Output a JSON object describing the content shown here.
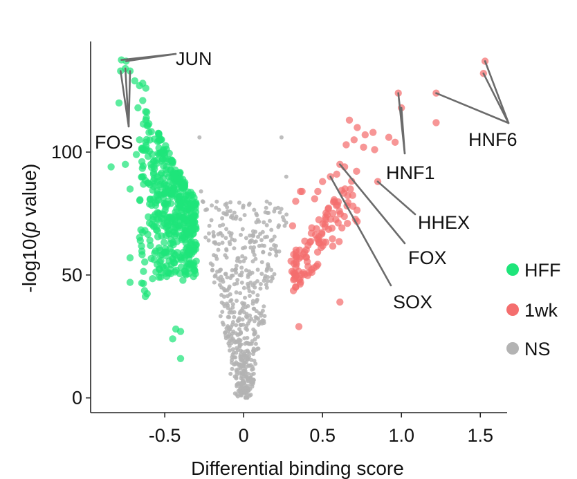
{
  "chart_data": {
    "type": "scatter",
    "xlabel": "Differential binding score",
    "ylabel_prefix": "-log10(",
    "ylabel_italic": "p",
    "ylabel_suffix": " value)",
    "xlim": [
      -0.97,
      1.67
    ],
    "ylim": [
      -6,
      145
    ],
    "x_ticks": [
      -0.5,
      0,
      0.5,
      1.0,
      1.5
    ],
    "x_tick_labels": [
      "-0.5",
      "0",
      "0.5",
      "1.0",
      "1.5"
    ],
    "y_ticks": [
      0,
      50,
      100
    ],
    "y_tick_labels": [
      "0",
      "50",
      "100"
    ],
    "grid": false,
    "legend_placement": "right",
    "series": [
      {
        "name": "HFF",
        "color": "#1ee57a",
        "points": [
          [
            -0.775,
            137.5
          ],
          [
            -0.745,
            137
          ],
          [
            -0.78,
            133
          ],
          [
            -0.75,
            134
          ],
          [
            -0.72,
            133
          ],
          [
            -0.79,
            120
          ],
          [
            -0.84,
            94
          ],
          [
            -0.75,
            95
          ],
          [
            -0.72,
            85
          ],
          [
            -0.72,
            57
          ],
          [
            -0.72,
            47
          ],
          [
            -0.43,
            28
          ],
          [
            -0.45,
            24
          ],
          [
            -0.4,
            27
          ],
          [
            -0.4,
            16
          ],
          [
            -0.69,
            129
          ],
          [
            -0.66,
            127
          ],
          [
            -0.64,
            128
          ],
          [
            -0.62,
            126
          ],
          [
            -0.64,
            121
          ],
          [
            -0.67,
            118
          ],
          [
            -0.62,
            113
          ],
          [
            -0.66,
            105
          ],
          [
            -0.6,
            108
          ],
          [
            -0.68,
            99
          ]
        ],
        "clusters": [
          {
            "x_min": -0.66,
            "x_max": -0.3,
            "y_min": 40,
            "y_max": 125,
            "count": 480,
            "seed": 11,
            "shape": "hff"
          }
        ]
      },
      {
        "name": "1wk",
        "color": "#f46e6e",
        "points": [
          [
            1.53,
            137
          ],
          [
            1.52,
            132
          ],
          [
            0.98,
            124
          ],
          [
            1.0,
            118
          ],
          [
            1.22,
            124
          ],
          [
            1.22,
            112
          ],
          [
            0.85,
            88
          ],
          [
            0.72,
            110
          ],
          [
            0.67,
            113
          ],
          [
            0.7,
            105
          ],
          [
            0.65,
            103
          ],
          [
            0.77,
            107
          ],
          [
            0.82,
            108
          ],
          [
            0.83,
            101
          ],
          [
            0.76,
            102
          ],
          [
            0.92,
            106
          ],
          [
            0.96,
            104
          ],
          [
            0.61,
            95
          ],
          [
            0.64,
            94
          ],
          [
            0.59,
            91
          ],
          [
            0.55,
            90
          ],
          [
            0.5,
            88
          ],
          [
            0.47,
            84
          ],
          [
            0.45,
            81
          ],
          [
            0.37,
            84
          ],
          [
            0.36,
            84
          ],
          [
            0.33,
            80
          ],
          [
            0.31,
            70
          ],
          [
            0.61,
            39
          ],
          [
            0.35,
            29
          ],
          [
            0.33,
            45
          ]
        ],
        "clusters": [
          {
            "x_min": 0.3,
            "x_max": 0.72,
            "y_min": 42,
            "y_max": 92,
            "count": 110,
            "seed": 23,
            "shape": "wk"
          }
        ]
      },
      {
        "name": "NS",
        "color": "#b3b3b3",
        "points": [
          [
            -0.28,
            106
          ],
          [
            0.24,
            106
          ],
          [
            0.2,
            77
          ],
          [
            0.27,
            90
          ],
          [
            0.26,
            70
          ],
          [
            -0.27,
            84
          ],
          [
            -0.26,
            80
          ]
        ],
        "clusters": [
          {
            "x_min": -0.32,
            "x_max": 0.33,
            "y_min": 0,
            "y_max": 80,
            "count": 560,
            "seed": 37,
            "shape": "v"
          }
        ]
      }
    ],
    "annotations": [
      {
        "label": "JUN",
        "targets": [
          [
            -0.775,
            137.5
          ],
          [
            -0.745,
            137
          ]
        ],
        "anchor": "jun"
      },
      {
        "label": "FOS",
        "targets": [
          [
            -0.78,
            133
          ],
          [
            -0.75,
            134
          ],
          [
            -0.72,
            133
          ]
        ],
        "anchor": "fos"
      },
      {
        "label": "HNF6",
        "targets": [
          [
            1.53,
            137
          ],
          [
            1.52,
            132
          ],
          [
            1.22,
            124
          ]
        ],
        "anchor": "hnf6"
      },
      {
        "label": "HNF1",
        "targets": [
          [
            0.98,
            124
          ],
          [
            1.0,
            118
          ]
        ],
        "anchor": "hnf1"
      },
      {
        "label": "HHEX",
        "targets": [
          [
            0.85,
            88
          ]
        ],
        "anchor": "hhex"
      },
      {
        "label": "FOX",
        "targets": [
          [
            0.61,
            95
          ]
        ],
        "anchor": "fox"
      },
      {
        "label": "SOX",
        "targets": [
          [
            0.55,
            90
          ]
        ],
        "anchor": "sox"
      }
    ]
  }
}
